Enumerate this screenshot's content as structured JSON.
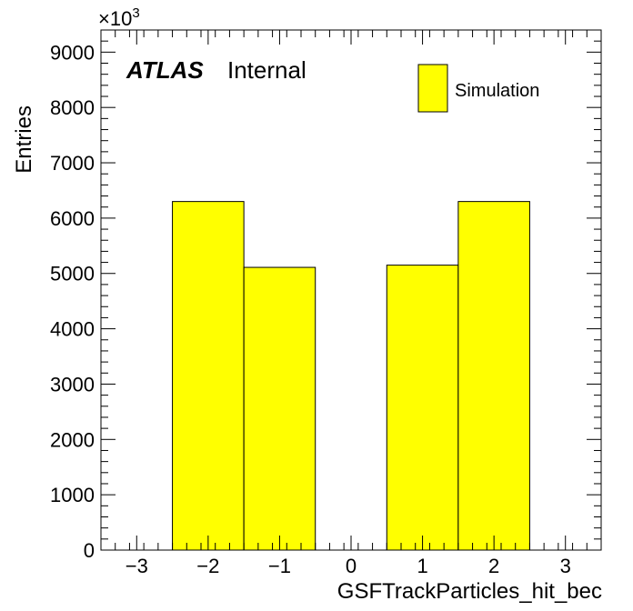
{
  "chart_data": {
    "type": "bar",
    "histogram": true,
    "xlabel": "GSFTrackParticles_hit_bec",
    "ylabel": "Entries",
    "y_multiplier": "×10",
    "y_multiplier_exp": "3",
    "labels": {
      "atlas": "ATLAS",
      "internal": "Internal"
    },
    "xlim": [
      -3.5,
      3.5
    ],
    "ylim": [
      0,
      9400
    ],
    "x_ticks": [
      {
        "value": -3,
        "label": "−3"
      },
      {
        "value": -2,
        "label": "−2"
      },
      {
        "value": -1,
        "label": "−1"
      },
      {
        "value": 0,
        "label": "0"
      },
      {
        "value": 1,
        "label": "1"
      },
      {
        "value": 2,
        "label": "2"
      },
      {
        "value": 3,
        "label": "3"
      }
    ],
    "y_ticks": [
      0,
      1000,
      2000,
      3000,
      4000,
      5000,
      6000,
      7000,
      8000,
      9000
    ],
    "y_tick_labels": [
      "0",
      "1000",
      "2000",
      "3000",
      "4000",
      "5000",
      "6000",
      "7000",
      "8000",
      "9000"
    ],
    "bins": [
      {
        "low": -2.5,
        "high": -1.5,
        "value": 6300
      },
      {
        "low": -1.5,
        "high": -0.5,
        "value": 5110
      },
      {
        "low": 0.5,
        "high": 1.5,
        "value": 5150
      },
      {
        "low": 1.5,
        "high": 2.5,
        "value": 6300
      }
    ],
    "series": [
      {
        "name": "Simulation",
        "color": "#ffff00"
      }
    ],
    "legend_position": "top-right",
    "grid": false
  }
}
